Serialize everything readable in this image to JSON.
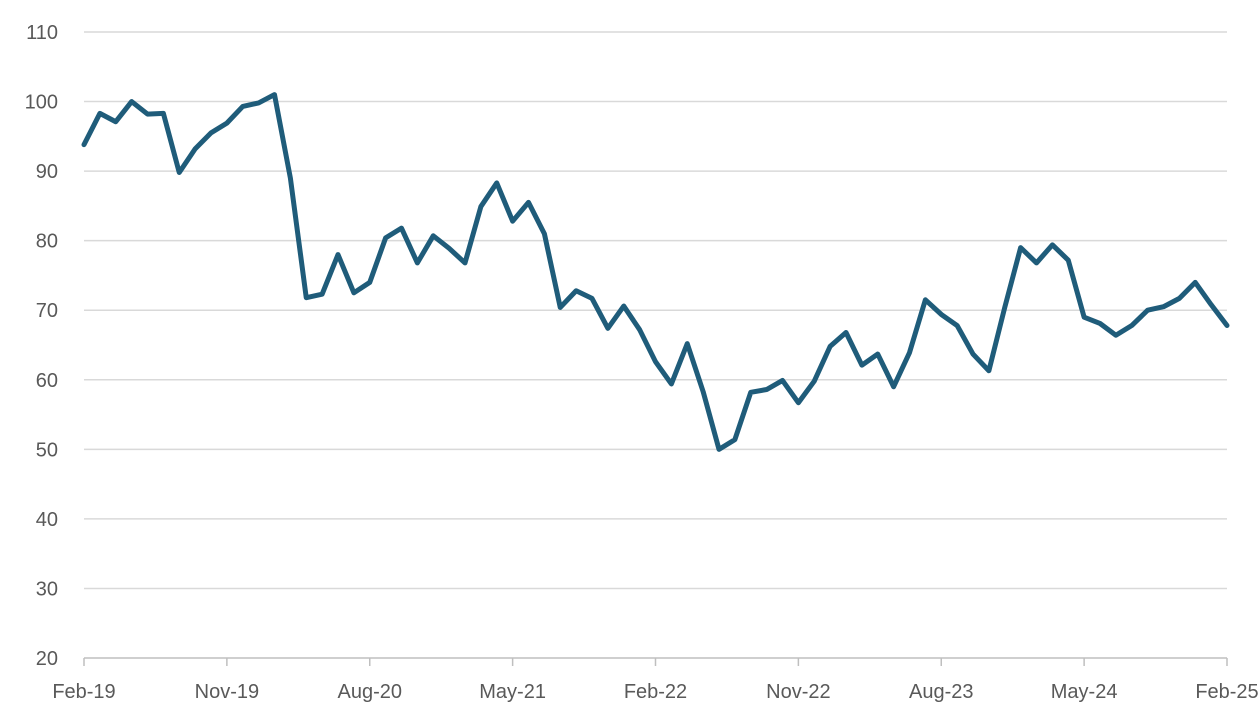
{
  "chart_data": {
    "type": "line",
    "title": "",
    "xlabel": "",
    "ylabel": "",
    "ylim": [
      20,
      110
    ],
    "y_ticks": [
      "20",
      "30",
      "40",
      "50",
      "60",
      "70",
      "80",
      "90",
      "100",
      "110"
    ],
    "x_ticks": [
      "Feb-19",
      "Nov-19",
      "Aug-20",
      "May-21",
      "Feb-22",
      "Nov-22",
      "Aug-23",
      "May-24",
      "Feb-25"
    ],
    "grid": "horizontal",
    "legend": "none",
    "line_color": "#1f5c7a",
    "grid_color": "#d9d9d9",
    "axis_color": "#bfbfbf",
    "series": [
      {
        "x": [
          "Feb-19",
          "Mar-19",
          "Apr-19",
          "May-19",
          "Jun-19",
          "Jul-19",
          "Aug-19",
          "Sep-19",
          "Oct-19",
          "Nov-19",
          "Dec-19",
          "Jan-20",
          "Feb-20",
          "Mar-20",
          "Apr-20",
          "May-20",
          "Jun-20",
          "Jul-20",
          "Aug-20",
          "Sep-20",
          "Oct-20",
          "Nov-20",
          "Dec-20",
          "Jan-21",
          "Feb-21",
          "Mar-21",
          "Apr-21",
          "May-21",
          "Jun-21",
          "Jul-21",
          "Aug-21",
          "Sep-21",
          "Oct-21",
          "Nov-21",
          "Dec-21",
          "Jan-22",
          "Feb-22",
          "Mar-22",
          "Apr-22",
          "May-22",
          "Jun-22",
          "Jul-22",
          "Aug-22",
          "Sep-22",
          "Oct-22",
          "Nov-22",
          "Dec-22",
          "Jan-23",
          "Feb-23",
          "Mar-23",
          "Apr-23",
          "May-23",
          "Jun-23",
          "Jul-23",
          "Aug-23",
          "Sep-23",
          "Oct-23",
          "Nov-23",
          "Dec-23",
          "Jan-24",
          "Feb-24",
          "Mar-24",
          "Apr-24",
          "May-24",
          "Jun-24",
          "Jul-24",
          "Aug-24",
          "Sep-24",
          "Oct-24",
          "Nov-24",
          "Dec-24",
          "Jan-25",
          "Feb-25"
        ],
        "values": [
          93.8,
          98.3,
          97.1,
          100.0,
          98.2,
          98.3,
          89.8,
          93.2,
          95.5,
          96.9,
          99.3,
          99.8,
          101.0,
          89.0,
          71.8,
          72.3,
          78.0,
          72.5,
          74.0,
          80.4,
          81.8,
          76.8,
          80.7,
          78.9,
          76.8,
          84.9,
          88.3,
          82.8,
          85.5,
          81.0,
          70.4,
          72.8,
          71.7,
          67.4,
          70.6,
          67.2,
          62.6,
          59.4,
          65.2,
          58.3,
          50.0,
          51.4,
          58.2,
          58.6,
          59.9,
          56.7,
          59.8,
          64.8,
          66.8,
          62.1,
          63.7,
          59.0,
          63.9,
          71.5,
          69.4,
          67.8,
          63.7,
          61.3,
          70.4,
          79.0,
          76.8,
          79.4,
          77.2,
          69.0,
          68.1,
          66.4,
          67.8,
          70.0,
          70.5,
          71.7,
          74.0,
          70.8,
          67.8
        ]
      }
    ]
  }
}
